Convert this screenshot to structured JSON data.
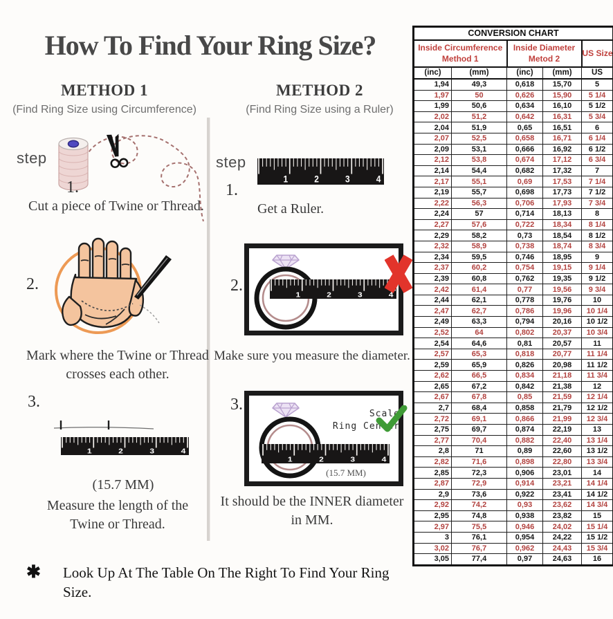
{
  "title": "How To Find Your Ring Size?",
  "methods": [
    {
      "name": "METHOD 1",
      "subtitle": "(Find Ring Size using Circumference)",
      "step_label": "step",
      "steps": [
        {
          "num": "1.",
          "caption": "Cut a piece of Twine or Thread."
        },
        {
          "num": "2.",
          "caption_lines": [
            "Mark where the Twine or Thread",
            "crosses each other."
          ]
        },
        {
          "num": "3.",
          "measure": "(15.7 MM)",
          "caption_lines": [
            "Measure the length of the",
            "Twine or Thread."
          ]
        }
      ]
    },
    {
      "name": "METHOD 2",
      "subtitle": "(Find Ring Size using a Ruler)",
      "step_label": "step",
      "steps": [
        {
          "num": "1.",
          "caption": "Get a Ruler."
        },
        {
          "num": "2.",
          "caption": "Make sure you measure the diameter."
        },
        {
          "num": "3.",
          "scale_label_lines": [
            "Scale",
            "Ring Center"
          ],
          "measure": "(15.7 MM)",
          "caption_lines": [
            "It should be the INNER diameter",
            "in MM."
          ]
        }
      ]
    }
  ],
  "ruler_numbers": [
    "1",
    "2",
    "3",
    "4"
  ],
  "footnote": {
    "asterisk": "✱",
    "text": "Look Up  At The Table On The Right To Find Your Ring Size."
  },
  "conversion_chart": {
    "title": "CONVERSION CHART",
    "group_headers": [
      {
        "lines": [
          "Inside Circumference",
          "Method 1"
        ]
      },
      {
        "lines": [
          "Inside Diameter",
          "Metod 2"
        ]
      },
      {
        "lines": [
          "US Sizes"
        ]
      }
    ],
    "sub_headers": [
      "(inc)",
      "(mm)",
      "(inc)",
      "(mm)",
      "US"
    ],
    "rows": [
      {
        "cells": [
          "1,94",
          "49,3",
          "0,618",
          "15,70",
          "5"
        ],
        "red": false
      },
      {
        "cells": [
          "1,97",
          "50",
          "0,626",
          "15,90",
          "5 1/4"
        ],
        "red": true
      },
      {
        "cells": [
          "1,99",
          "50,6",
          "0,634",
          "16,10",
          "5 1/2"
        ],
        "red": false
      },
      {
        "cells": [
          "2,02",
          "51,2",
          "0,642",
          "16,31",
          "5 3/4"
        ],
        "red": true
      },
      {
        "cells": [
          "2,04",
          "51,9",
          "0,65",
          "16,51",
          "6"
        ],
        "red": false
      },
      {
        "cells": [
          "2,07",
          "52,5",
          "0,658",
          "16,71",
          "6 1/4"
        ],
        "red": true
      },
      {
        "cells": [
          "2,09",
          "53,1",
          "0,666",
          "16,92",
          "6 1/2"
        ],
        "red": false
      },
      {
        "cells": [
          "2,12",
          "53,8",
          "0,674",
          "17,12",
          "6 3/4"
        ],
        "red": true
      },
      {
        "cells": [
          "2,14",
          "54,4",
          "0,682",
          "17,32",
          "7"
        ],
        "red": false
      },
      {
        "cells": [
          "2,17",
          "55,1",
          "0,69",
          "17,53",
          "7 1/4"
        ],
        "red": true
      },
      {
        "cells": [
          "2,19",
          "55,7",
          "0,698",
          "17,73",
          "7 1/2"
        ],
        "red": false
      },
      {
        "cells": [
          "2,22",
          "56,3",
          "0,706",
          "17,93",
          "7 3/4"
        ],
        "red": true
      },
      {
        "cells": [
          "2,24",
          "57",
          "0,714",
          "18,13",
          "8"
        ],
        "red": false
      },
      {
        "cells": [
          "2,27",
          "57,6",
          "0,722",
          "18,34",
          "8 1/4"
        ],
        "red": true
      },
      {
        "cells": [
          "2,29",
          "58,2",
          "0,73",
          "18,54",
          "8 1/2"
        ],
        "red": false
      },
      {
        "cells": [
          "2,32",
          "58,9",
          "0,738",
          "18,74",
          "8 3/4"
        ],
        "red": true
      },
      {
        "cells": [
          "2,34",
          "59,5",
          "0,746",
          "18,95",
          "9"
        ],
        "red": false
      },
      {
        "cells": [
          "2,37",
          "60,2",
          "0,754",
          "19,15",
          "9 1/4"
        ],
        "red": true
      },
      {
        "cells": [
          "2,39",
          "60,8",
          "0,762",
          "19,35",
          "9 1/2"
        ],
        "red": false
      },
      {
        "cells": [
          "2,42",
          "61,4",
          "0,77",
          "19,56",
          "9 3/4"
        ],
        "red": true
      },
      {
        "cells": [
          "2,44",
          "62,1",
          "0,778",
          "19,76",
          "10"
        ],
        "red": false
      },
      {
        "cells": [
          "2,47",
          "62,7",
          "0,786",
          "19,96",
          "10 1/4"
        ],
        "red": true
      },
      {
        "cells": [
          "2,49",
          "63,3",
          "0,794",
          "20,16",
          "10 1/2"
        ],
        "red": false
      },
      {
        "cells": [
          "2,52",
          "64",
          "0,802",
          "20,37",
          "10 3/4"
        ],
        "red": true
      },
      {
        "cells": [
          "2,54",
          "64,6",
          "0,81",
          "20,57",
          "11"
        ],
        "red": false
      },
      {
        "cells": [
          "2,57",
          "65,3",
          "0,818",
          "20,77",
          "11 1/4"
        ],
        "red": true
      },
      {
        "cells": [
          "2,59",
          "65,9",
          "0,826",
          "20,98",
          "11 1/2"
        ],
        "red": false
      },
      {
        "cells": [
          "2,62",
          "66,5",
          "0,834",
          "21,18",
          "11 3/4"
        ],
        "red": true
      },
      {
        "cells": [
          "2,65",
          "67,2",
          "0,842",
          "21,38",
          "12"
        ],
        "red": false
      },
      {
        "cells": [
          "2,67",
          "67,8",
          "0,85",
          "21,59",
          "12 1/4"
        ],
        "red": true
      },
      {
        "cells": [
          "2,7",
          "68,4",
          "0,858",
          "21,79",
          "12 1/2"
        ],
        "red": false
      },
      {
        "cells": [
          "2,72",
          "69,1",
          "0,866",
          "21,99",
          "12 3/4"
        ],
        "red": true
      },
      {
        "cells": [
          "2,75",
          "69,7",
          "0,874",
          "22,19",
          "13"
        ],
        "red": false
      },
      {
        "cells": [
          "2,77",
          "70,4",
          "0,882",
          "22,40",
          "13 1/4"
        ],
        "red": true
      },
      {
        "cells": [
          "2,8",
          "71",
          "0,89",
          "22,60",
          "13 1/2"
        ],
        "red": false
      },
      {
        "cells": [
          "2,82",
          "71,6",
          "0,898",
          "22,80",
          "13 3/4"
        ],
        "red": true
      },
      {
        "cells": [
          "2,85",
          "72,3",
          "0,906",
          "23,01",
          "14"
        ],
        "red": false
      },
      {
        "cells": [
          "2,87",
          "72,9",
          "0,914",
          "23,21",
          "14 1/4"
        ],
        "red": true
      },
      {
        "cells": [
          "2,9",
          "73,6",
          "0,922",
          "23,41",
          "14 1/2"
        ],
        "red": false
      },
      {
        "cells": [
          "2,92",
          "74,2",
          "0,93",
          "23,62",
          "14 3/4"
        ],
        "red": true
      },
      {
        "cells": [
          "2,95",
          "74,8",
          "0,938",
          "23,82",
          "15"
        ],
        "red": false
      },
      {
        "cells": [
          "2,97",
          "75,5",
          "0,946",
          "24,02",
          "15 1/4"
        ],
        "red": true
      },
      {
        "cells": [
          "3",
          "76,1",
          "0,954",
          "24,22",
          "15 1/2"
        ],
        "red": false
      },
      {
        "cells": [
          "3,02",
          "76,7",
          "0,962",
          "24,43",
          "15 3/4"
        ],
        "red": true
      },
      {
        "cells": [
          "3,05",
          "77,4",
          "0,97",
          "24,63",
          "16"
        ],
        "red": false
      }
    ]
  },
  "colors": {
    "table_red_text": "#b2423f",
    "header_red": "#c0403c",
    "x_mark_red": "#e2342b",
    "check_green": "#3f9b36",
    "hand_circle_orange": "#ed9a55",
    "hand_fill": "#f4c49e",
    "twine_pink": "#eed6d4",
    "spool_hole_blue": "#4f49c0",
    "diamond_lavender": "#cdb9de",
    "ring_inner_rose": "#b48c8c"
  }
}
